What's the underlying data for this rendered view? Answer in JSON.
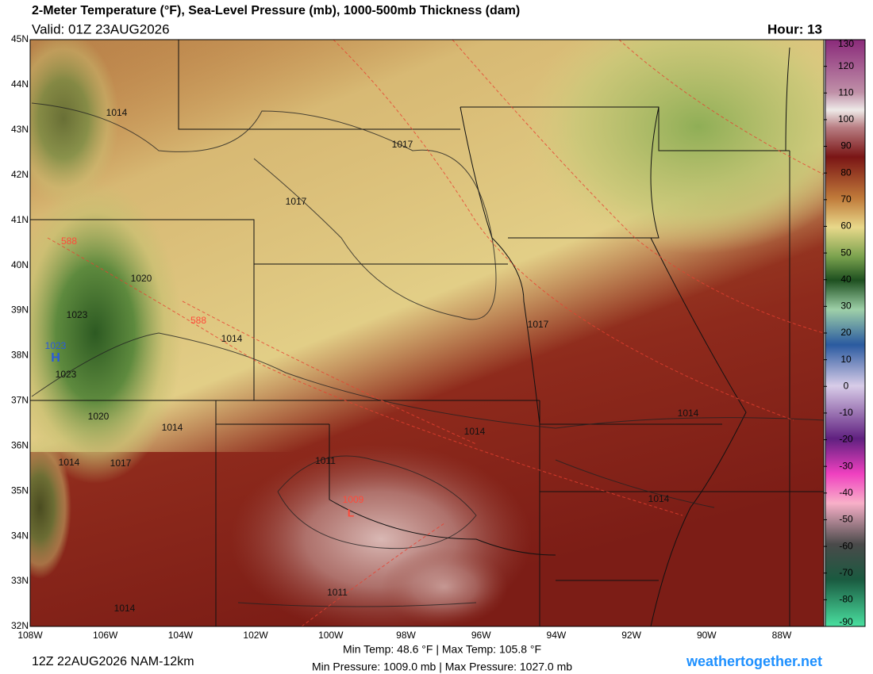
{
  "header": {
    "title": "2-Meter Temperature (°F), Sea-Level Pressure (mb), 1000-500mb Thickness (dam)",
    "valid": "Valid: 01Z 23AUG2026",
    "hour": "Hour: 13"
  },
  "map": {
    "lat_labels": [
      "45N",
      "44N",
      "43N",
      "42N",
      "41N",
      "40N",
      "39N",
      "38N",
      "37N",
      "36N",
      "35N",
      "34N",
      "33N",
      "32N"
    ],
    "lon_labels": [
      "108W",
      "106W",
      "104W",
      "102W",
      "100W",
      "98W",
      "96W",
      "94W",
      "92W",
      "90W",
      "88W"
    ],
    "contour_labels": [
      "1014",
      "1017",
      "1017",
      "588",
      "1020",
      "1023",
      "588",
      "1014",
      "1023",
      "1023",
      "1017",
      "1020",
      "1014",
      "1014",
      "1014",
      "1014",
      "1017",
      "1011",
      "1009",
      "1014",
      "1011",
      "1014"
    ],
    "high_label": "H",
    "low_label": "L"
  },
  "colorbar": {
    "ticks": [
      130,
      120,
      110,
      100,
      90,
      80,
      70,
      60,
      50,
      40,
      30,
      20,
      10,
      0,
      -10,
      -20,
      -30,
      -40,
      -50,
      -60,
      -70,
      -80,
      -90
    ]
  },
  "footer": {
    "run": "12Z 22AUG2026 NAM-12km",
    "temps": "Min Temp:  48.6 °F | Max Temp: 105.8 °F",
    "pressures": "Min Pressure: 1009.0 mb | Max Pressure: 1027.0 mb",
    "site": "weathertogether.net"
  }
}
